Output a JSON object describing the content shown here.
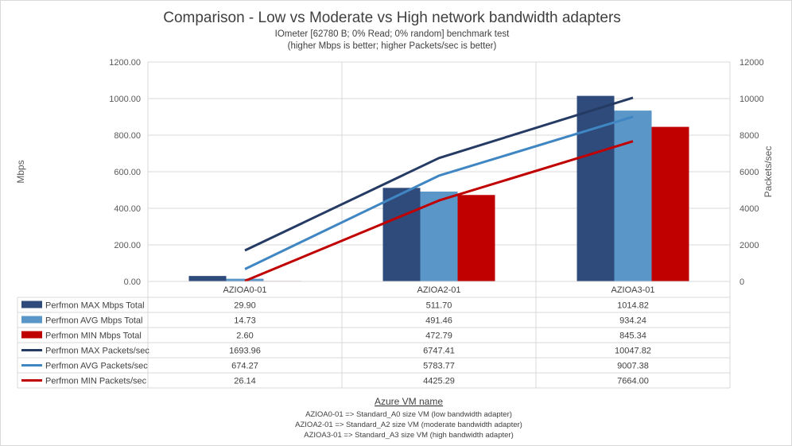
{
  "chart_data": {
    "type": "bar",
    "title": "Comparison - Low vs Moderate vs High network bandwidth adapters",
    "subtitle_lines": [
      "IOmeter [62780 B; 0% Read; 0% random] benchmark test",
      "(higher Mbps is better; higher Packets/sec is better)"
    ],
    "categories": [
      "AZIOA0-01",
      "AZIOA2-01",
      "AZIOA3-01"
    ],
    "ylabel": "Mbps",
    "ylabel_right": "Packets/sec",
    "ylim": [
      0,
      1200
    ],
    "ylim_right": [
      0,
      12000
    ],
    "yticks": [
      "0.00",
      "200.00",
      "400.00",
      "600.00",
      "800.00",
      "1000.00",
      "1200.00"
    ],
    "yticks_right": [
      "0",
      "2000",
      "4000",
      "6000",
      "8000",
      "10000",
      "12000"
    ],
    "xlabel": "Azure VM name",
    "notes": [
      "AZIOA0-01 => Standard_A0 size VM (low bandwidth adapter)",
      "AZIOA2-01 => Standard_A2 size VM (moderate bandwidth adapter)",
      "AZIOA3-01 => Standard_A3 size VM (high bandwidth adapter)"
    ],
    "grid": true,
    "legend": "data-table",
    "series": [
      {
        "name": "Perfmon MAX Mbps Total",
        "kind": "bar",
        "axis": "left",
        "color": "#2f4b7c",
        "values": [
          29.9,
          511.7,
          1014.82
        ],
        "labels": [
          "29.90",
          "511.70",
          "1014.82"
        ]
      },
      {
        "name": "Perfmon AVG Mbps Total",
        "kind": "bar",
        "axis": "left",
        "color": "#5b96c8",
        "values": [
          14.73,
          491.46,
          934.24
        ],
        "labels": [
          "14.73",
          "491.46",
          "934.24"
        ]
      },
      {
        "name": "Perfmon MIN Mbps Total",
        "kind": "bar",
        "axis": "left",
        "color": "#c00000",
        "values": [
          2.6,
          472.79,
          845.34
        ],
        "labels": [
          "2.60",
          "472.79",
          "845.34"
        ]
      },
      {
        "name": "Perfmon MAX Packets/sec",
        "kind": "line",
        "axis": "right",
        "color": "#253b63",
        "values": [
          1693.96,
          6747.41,
          10047.82
        ],
        "labels": [
          "1693.96",
          "6747.41",
          "10047.82"
        ]
      },
      {
        "name": "Perfmon AVG Packets/sec",
        "kind": "line",
        "axis": "right",
        "color": "#3f86c3",
        "values": [
          674.27,
          5783.77,
          9007.38
        ],
        "labels": [
          "674.27",
          "5783.77",
          "9007.38"
        ]
      },
      {
        "name": "Perfmon MIN Packets/sec",
        "kind": "line",
        "axis": "right",
        "color": "#c00000",
        "values": [
          26.14,
          4425.29,
          7664.0
        ],
        "labels": [
          "26.14",
          "4425.29",
          "7664.00"
        ]
      }
    ]
  }
}
